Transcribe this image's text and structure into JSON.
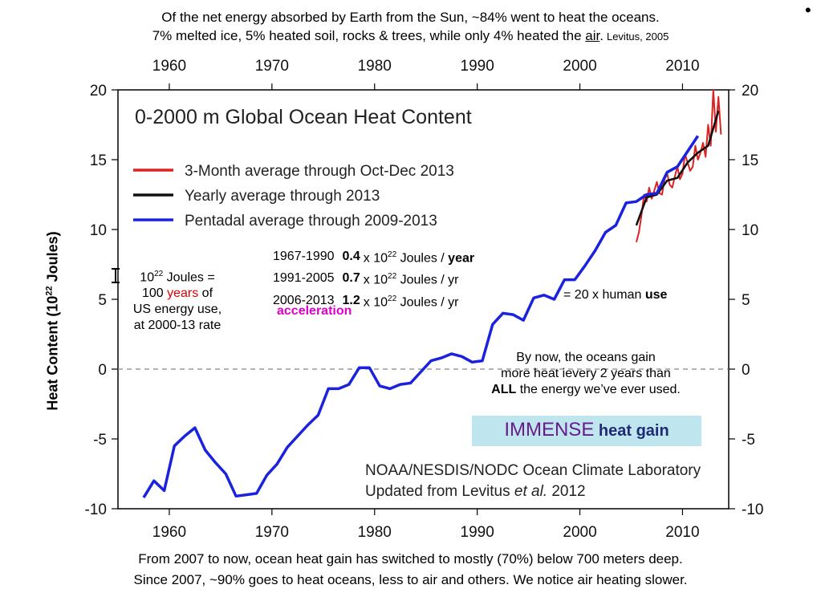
{
  "header": {
    "line1": "Of the net energy absorbed by Earth from the Sun, ~84% went to heat the oceans.",
    "line2_prefix": "7% melted ice, 5% heated soil, rocks & trees, while only 4% heated the ",
    "line2_air": "air",
    "line2_suffix": ".",
    "citation": "Levitus, 2005",
    "bullet": "•"
  },
  "footer": {
    "line1": "From 2007 to now, ocean heat gain has switched to mostly (70%) below 700 meters deep.",
    "line2": "Since 2007, ~90% goes to heat oceans, less to air and others.  We notice air heating slower."
  },
  "annotations": {
    "ylabel_text": "Heat Content (10",
    "ylabel_exp": "22",
    "ylabel_unit": " Joules)",
    "joule_box": {
      "l1_base": "10",
      "l1_exp": "22",
      "l1_rest": " Joules =",
      "l2_pre": "100 ",
      "l2_years": "years",
      "l2_post": " of",
      "l3": "US energy use,",
      "l4": "at 2000-13 rate"
    },
    "rates": [
      {
        "period": "1967-1990",
        "value": "0.4",
        "unit_base": "x 10",
        "unit_exp": "22",
        "unit_rest": " Joules / ",
        "unit_end": "year"
      },
      {
        "period": "1991-2005",
        "value": "0.7",
        "unit_base": "x 10",
        "unit_exp": "22",
        "unit_rest": " Joules / ",
        "unit_end": "yr"
      },
      {
        "period": "2006-2013",
        "value": "1.2",
        "unit_base": "x 10",
        "unit_exp": "22",
        "unit_rest": " Joules / ",
        "unit_end": "yr"
      }
    ],
    "acceleration": "acceleration",
    "human_use_pre": "= 20 x human ",
    "human_use_bold": "use",
    "oceans_gain_l1": "By now, the oceans gain",
    "oceans_gain_l2": "more heat ievery 2 years than",
    "oceans_gain_l3_bold": "ALL",
    "oceans_gain_l3_rest": " the energy we’ve ever used.",
    "immense_big": "IMMENSE",
    "immense_small": " heat gain"
  },
  "colors": {
    "red_series": "#dd2222",
    "black_series": "#111111",
    "blue_series": "#1b22dd",
    "accent_magenta": "#e000c8",
    "immense_bg": "#bfe6ee"
  },
  "chart_data": {
    "type": "line",
    "title": "0-2000 m Global Ocean Heat Content",
    "xlabel": "",
    "ylabel": "Heat Content (10^22 Joules)",
    "xlim": [
      1955,
      2014.5
    ],
    "ylim": [
      -10,
      20
    ],
    "x_ticks": [
      1960,
      1970,
      1980,
      1990,
      2000,
      2010
    ],
    "y_ticks": [
      -10,
      -5,
      0,
      5,
      10,
      15,
      20
    ],
    "zero_line": "dashed",
    "legend_position": "top-left",
    "source_line1": "NOAA/NESDIS/NODC Ocean Climate Laboratory",
    "source_line2_pre": "Updated from Levitus ",
    "source_line2_italic": "et al.",
    "source_line2_post": " 2012",
    "series": [
      {
        "name": "3-Month average through Oct-Dec 2013",
        "color": "#dd2222",
        "x": [
          2005.5,
          2005.75,
          2006.0,
          2006.25,
          2006.5,
          2006.75,
          2007.0,
          2007.25,
          2007.5,
          2007.75,
          2008.0,
          2008.25,
          2008.5,
          2008.75,
          2009.0,
          2009.25,
          2009.5,
          2009.75,
          2010.0,
          2010.25,
          2010.5,
          2010.75,
          2011.0,
          2011.25,
          2011.5,
          2011.75,
          2012.0,
          2012.25,
          2012.5,
          2012.75,
          2013.0,
          2013.25,
          2013.5,
          2013.75
        ],
        "y": [
          9.1,
          9.8,
          11.0,
          12.5,
          12.0,
          13.0,
          12.2,
          12.8,
          13.4,
          12.6,
          12.5,
          13.6,
          14.0,
          13.2,
          13.0,
          13.8,
          14.5,
          13.6,
          14.0,
          15.4,
          14.8,
          14.2,
          14.5,
          16.0,
          15.0,
          15.5,
          16.2,
          15.2,
          17.5,
          16.0,
          20.0,
          17.0,
          19.5,
          16.8
        ]
      },
      {
        "name": "Yearly average through 2013",
        "color": "#111111",
        "x": [
          2005.5,
          2006.5,
          2007.5,
          2008.5,
          2009.5,
          2010.5,
          2011.5,
          2012.5,
          2013.5
        ],
        "y": [
          10.3,
          12.3,
          12.5,
          13.5,
          13.7,
          14.8,
          15.5,
          16.0,
          18.5
        ]
      },
      {
        "name": "Pentadal average through 2009-2013",
        "color": "#1b22dd",
        "x": [
          1957.5,
          1958.5,
          1959.5,
          1960.5,
          1961.5,
          1962.5,
          1963.5,
          1964.5,
          1965.5,
          1966.5,
          1967.5,
          1968.5,
          1969.5,
          1970.5,
          1971.5,
          1972.5,
          1973.5,
          1974.5,
          1975.5,
          1976.5,
          1977.5,
          1978.5,
          1979.5,
          1980.5,
          1981.5,
          1982.5,
          1983.5,
          1984.5,
          1985.5,
          1986.5,
          1987.5,
          1988.5,
          1989.5,
          1990.5,
          1991.5,
          1992.5,
          1993.5,
          1994.5,
          1995.5,
          1996.5,
          1997.5,
          1998.5,
          1999.5,
          2000.5,
          2001.5,
          2002.5,
          2003.5,
          2004.5,
          2005.5,
          2006.5,
          2007.5,
          2008.5,
          2009.5,
          2010.5,
          2011.5
        ],
        "y": [
          -9.2,
          -8.0,
          -8.7,
          -5.5,
          -4.8,
          -4.2,
          -5.8,
          -6.7,
          -7.5,
          -9.1,
          -9.0,
          -8.9,
          -7.6,
          -6.8,
          -5.6,
          -4.8,
          -4.0,
          -3.3,
          -1.4,
          -1.4,
          -1.1,
          0.1,
          0.1,
          -1.2,
          -1.4,
          -1.1,
          -1.0,
          -0.2,
          0.6,
          0.8,
          1.1,
          0.9,
          0.5,
          0.6,
          3.2,
          4.0,
          3.9,
          3.5,
          5.1,
          5.3,
          5.0,
          6.4,
          6.4,
          7.4,
          8.5,
          9.8,
          10.3,
          11.9,
          12.0,
          12.5,
          12.6,
          14.1,
          14.5,
          15.6,
          16.7
        ]
      }
    ]
  }
}
